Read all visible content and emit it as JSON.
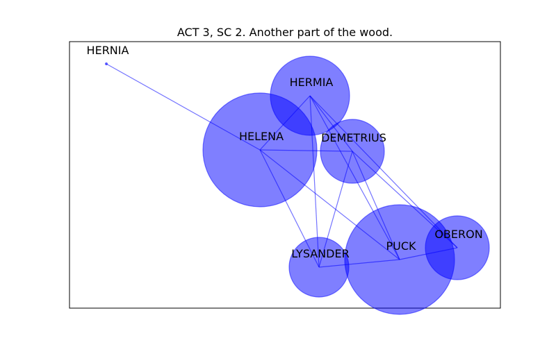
{
  "title": "ACT 3, SC 2. Another part of the wood.",
  "node_color": "#0000ff",
  "nodes": [
    {
      "id": "HERNIA",
      "label": "HERNIA"
    },
    {
      "id": "HERMIA",
      "label": "HERMIA"
    },
    {
      "id": "HELENA",
      "label": "HELENA"
    },
    {
      "id": "DEMETRIUS",
      "label": "DEMETRIUS"
    },
    {
      "id": "LYSANDER",
      "label": "LYSANDER"
    },
    {
      "id": "PUCK",
      "label": "PUCK"
    },
    {
      "id": "OBERON",
      "label": "OBERON"
    }
  ],
  "edges": [
    [
      "HERNIA",
      "HELENA"
    ],
    [
      "HELENA",
      "HERMIA"
    ],
    [
      "HELENA",
      "DEMETRIUS"
    ],
    [
      "HELENA",
      "LYSANDER"
    ],
    [
      "HELENA",
      "PUCK"
    ],
    [
      "HERMIA",
      "DEMETRIUS"
    ],
    [
      "HERMIA",
      "LYSANDER"
    ],
    [
      "HERMIA",
      "PUCK"
    ],
    [
      "HERMIA",
      "OBERON"
    ],
    [
      "DEMETRIUS",
      "LYSANDER"
    ],
    [
      "DEMETRIUS",
      "PUCK"
    ],
    [
      "DEMETRIUS",
      "OBERON"
    ],
    [
      "LYSANDER",
      "PUCK"
    ],
    [
      "PUCK",
      "OBERON"
    ]
  ]
}
